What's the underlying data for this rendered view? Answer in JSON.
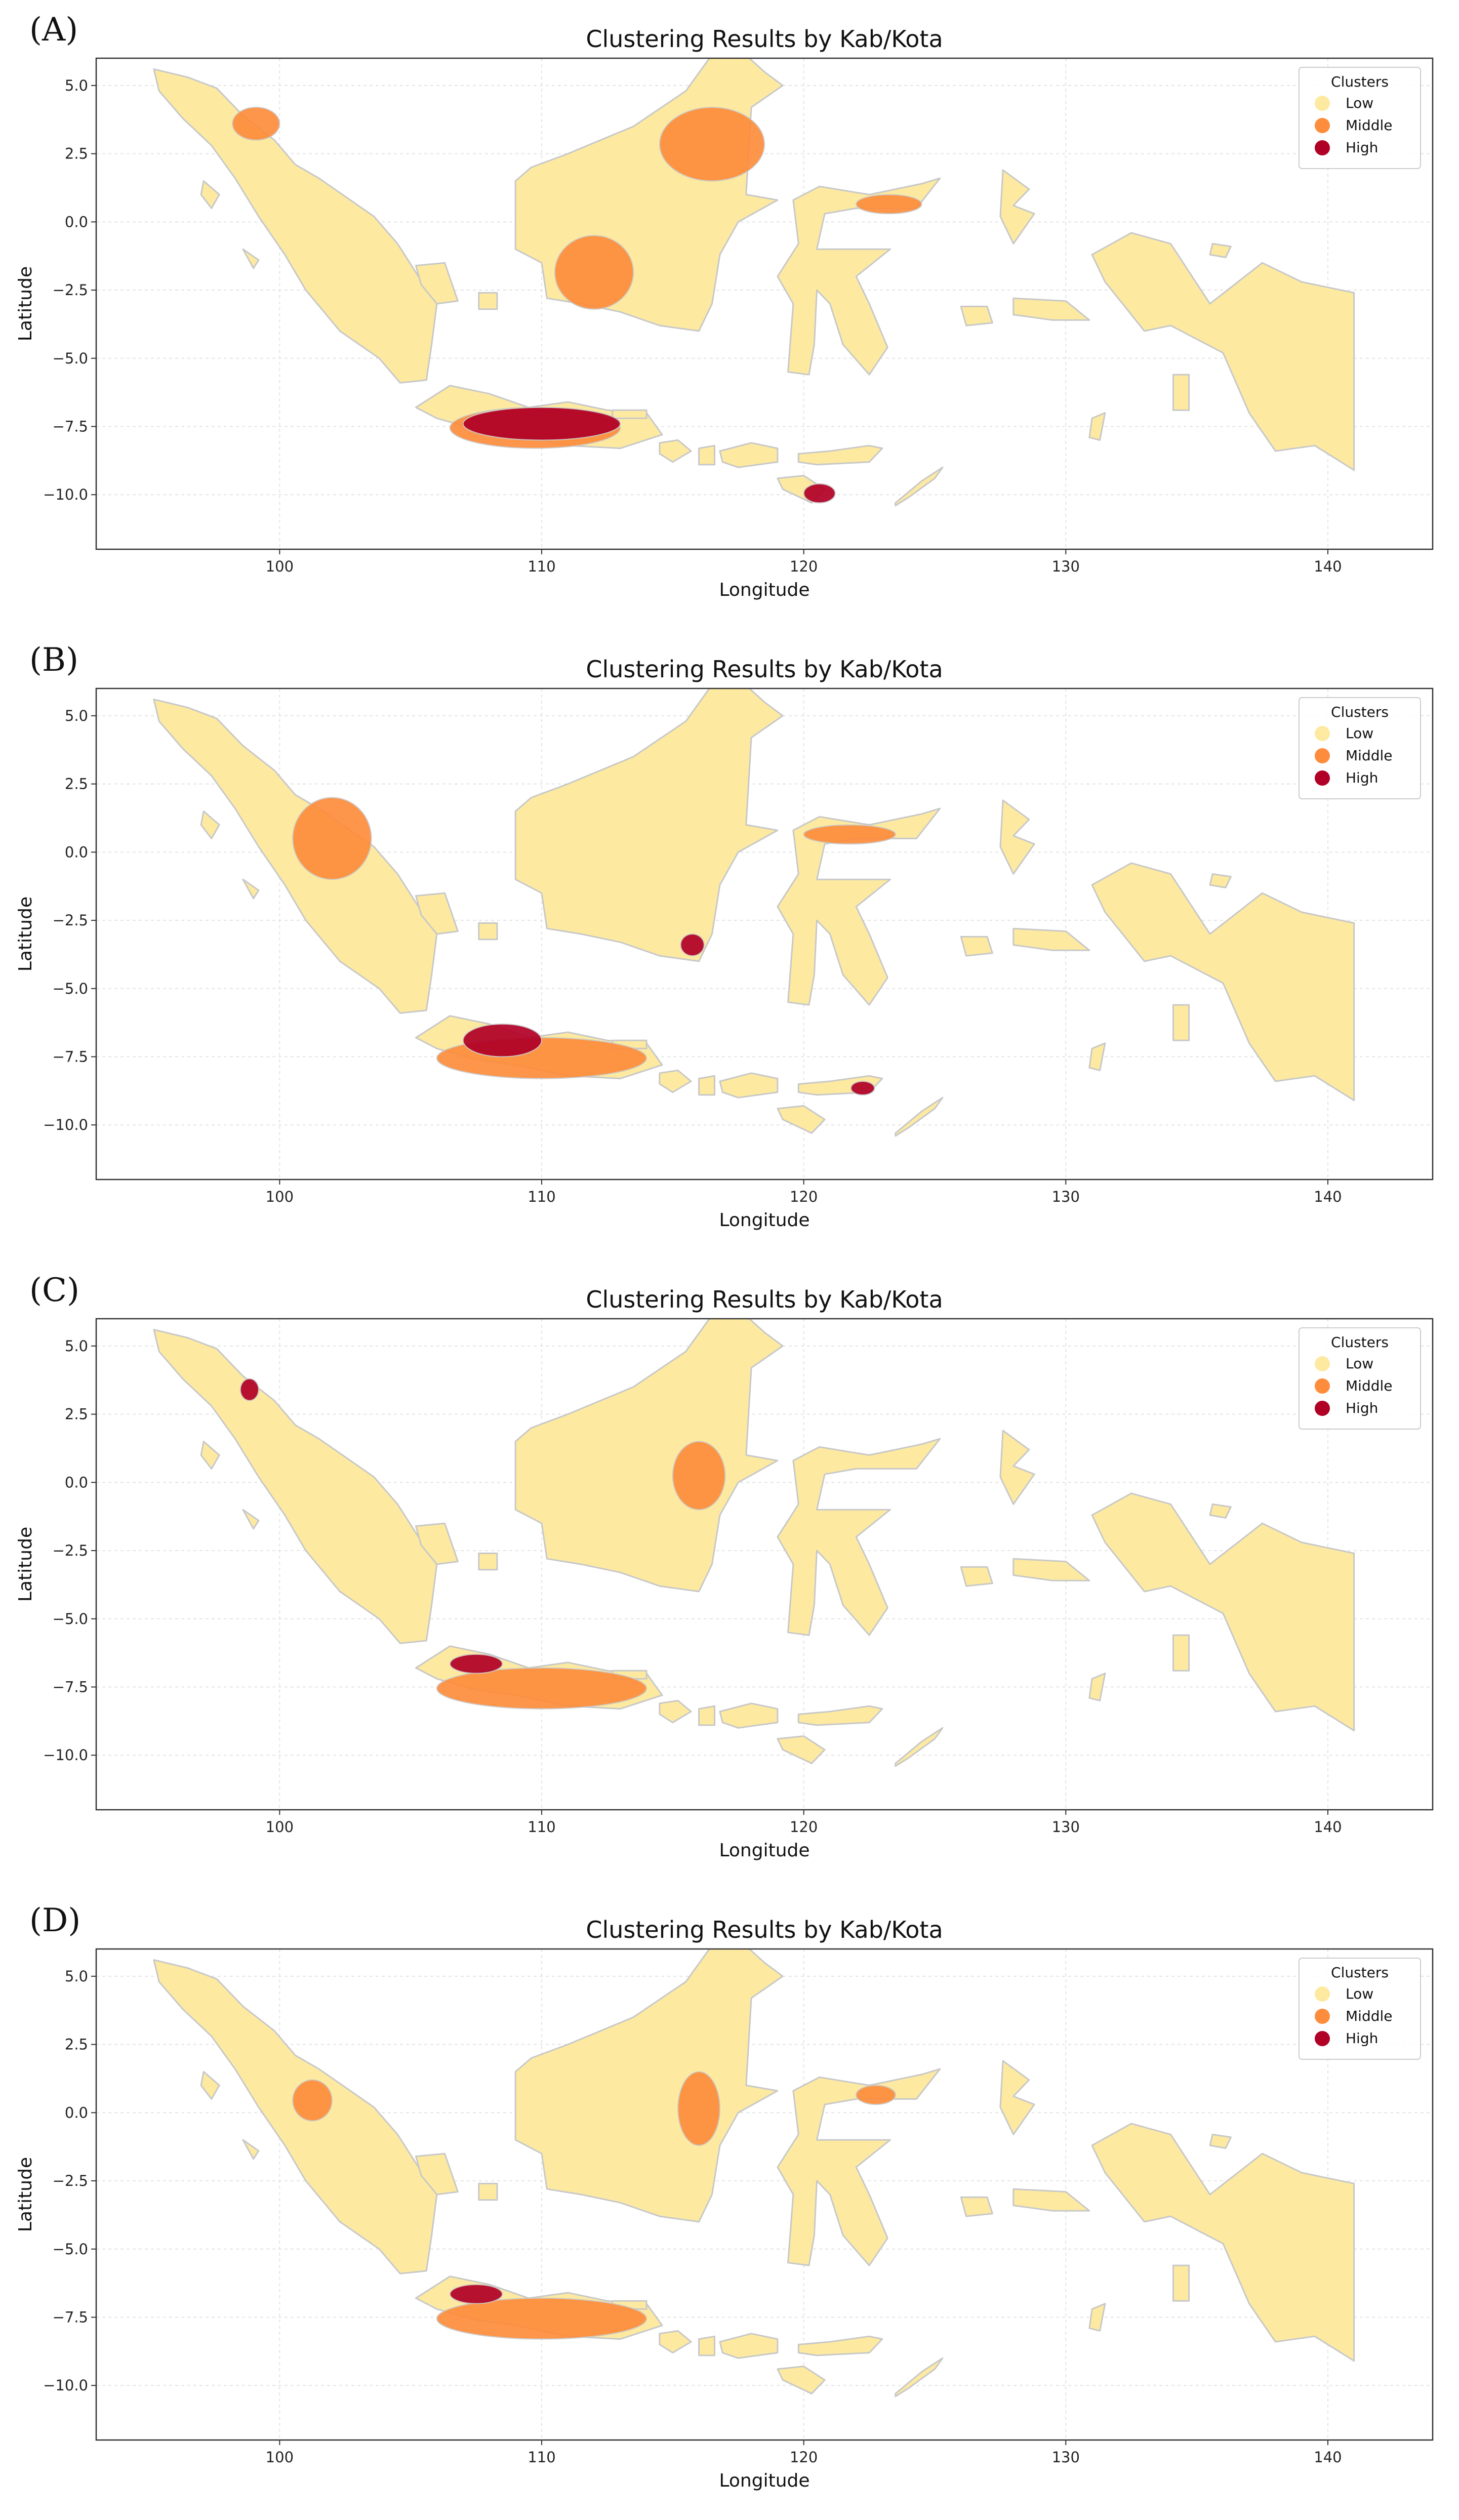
{
  "panels": [
    {
      "label": "(A)",
      "chart_data": {
        "type": "map",
        "title": "Clustering Results by Kab/Kota",
        "xlabel": "Longitude",
        "ylabel": "Latitude",
        "xlim": [
          93,
          144
        ],
        "ylim": [
          -12,
          6
        ],
        "xticks": [
          "100",
          "110",
          "120",
          "130",
          "140"
        ],
        "yticks": [
          "5.0",
          "2.5",
          "0.0",
          "−2.5",
          "−5.0",
          "−7.5",
          "−10.0"
        ],
        "grid": true,
        "legend": {
          "title": "Clusters",
          "position": "top-right",
          "entries": [
            {
              "label": "Low",
              "color": "#fdeaa0"
            },
            {
              "label": "Middle",
              "color": "#fd8d3c"
            },
            {
              "label": "High",
              "color": "#b10026"
            }
          ]
        },
        "highlights": [
          {
            "cluster": "Middle",
            "lon": [
              114.5,
              118.5
            ],
            "lat": [
              1.5,
              4.2
            ]
          },
          {
            "cluster": "Middle",
            "lon": [
              110.5,
              113.5
            ],
            "lat": [
              -3.2,
              -0.5
            ]
          },
          {
            "cluster": "Middle",
            "lon": [
              98.2,
              100.0
            ],
            "lat": [
              3.0,
              4.2
            ]
          },
          {
            "cluster": "Middle",
            "lon": [
              106.5,
              113.0
            ],
            "lat": [
              -8.3,
              -6.8
            ]
          },
          {
            "cluster": "High",
            "lon": [
              107.0,
              113.0
            ],
            "lat": [
              -8.0,
              -6.8
            ]
          },
          {
            "cluster": "High",
            "lon": [
              120.0,
              121.2
            ],
            "lat": [
              -10.3,
              -9.6
            ]
          },
          {
            "cluster": "Middle",
            "lon": [
              122.0,
              124.5
            ],
            "lat": [
              0.3,
              1.0
            ]
          }
        ]
      }
    },
    {
      "label": "(B)",
      "chart_data": {
        "type": "map",
        "title": "Clustering Results by Kab/Kota",
        "xlabel": "Longitude",
        "ylabel": "Latitude",
        "xlim": [
          93,
          144
        ],
        "ylim": [
          -12,
          6
        ],
        "xticks": [
          "100",
          "110",
          "120",
          "130",
          "140"
        ],
        "yticks": [
          "5.0",
          "2.5",
          "0.0",
          "−2.5",
          "−5.0",
          "−7.5",
          "−10.0"
        ],
        "grid": true,
        "legend": {
          "title": "Clusters",
          "position": "top-right",
          "entries": [
            {
              "label": "Low",
              "color": "#fdeaa0"
            },
            {
              "label": "Middle",
              "color": "#fd8d3c"
            },
            {
              "label": "High",
              "color": "#b10026"
            }
          ]
        },
        "highlights": [
          {
            "cluster": "Middle",
            "lon": [
              100.5,
              103.5
            ],
            "lat": [
              -1.0,
              2.0
            ]
          },
          {
            "cluster": "Middle",
            "lon": [
              106.0,
              114.0
            ],
            "lat": [
              -8.3,
              -6.8
            ]
          },
          {
            "cluster": "High",
            "lon": [
              107.0,
              110.0
            ],
            "lat": [
              -7.5,
              -6.3
            ]
          },
          {
            "cluster": "High",
            "lon": [
              115.3,
              116.2
            ],
            "lat": [
              -3.8,
              -3.0
            ]
          },
          {
            "cluster": "Middle",
            "lon": [
              120.0,
              123.5
            ],
            "lat": [
              0.3,
              1.0
            ]
          },
          {
            "cluster": "High",
            "lon": [
              121.8,
              122.7
            ],
            "lat": [
              -8.9,
              -8.4
            ]
          }
        ]
      }
    },
    {
      "label": "(C)",
      "chart_data": {
        "type": "map",
        "title": "Clustering Results by Kab/Kota",
        "xlabel": "Longitude",
        "ylabel": "Latitude",
        "xlim": [
          93,
          144
        ],
        "ylim": [
          -12,
          6
        ],
        "xticks": [
          "100",
          "110",
          "120",
          "130",
          "140"
        ],
        "yticks": [
          "5.0",
          "2.5",
          "0.0",
          "−2.5",
          "−5.0",
          "−7.5",
          "−10.0"
        ],
        "grid": true,
        "legend": {
          "title": "Clusters",
          "position": "top-right",
          "entries": [
            {
              "label": "Low",
              "color": "#fdeaa0"
            },
            {
              "label": "Middle",
              "color": "#fd8d3c"
            },
            {
              "label": "High",
              "color": "#b10026"
            }
          ]
        },
        "highlights": [
          {
            "cluster": "High",
            "lon": [
              98.5,
              99.2
            ],
            "lat": [
              3.0,
              3.8
            ]
          },
          {
            "cluster": "Middle",
            "lon": [
              115.0,
              117.0
            ],
            "lat": [
              -1.0,
              1.5
            ]
          },
          {
            "cluster": "Middle",
            "lon": [
              106.0,
              114.0
            ],
            "lat": [
              -8.3,
              -6.8
            ]
          },
          {
            "cluster": "High",
            "lon": [
              106.5,
              108.5
            ],
            "lat": [
              -7.0,
              -6.3
            ]
          }
        ]
      }
    },
    {
      "label": "(D)",
      "chart_data": {
        "type": "map",
        "title": "Clustering Results by Kab/Kota",
        "xlabel": "Longitude",
        "ylabel": "Latitude",
        "xlim": [
          93,
          144
        ],
        "ylim": [
          -12,
          6
        ],
        "xticks": [
          "100",
          "110",
          "120",
          "130",
          "140"
        ],
        "yticks": [
          "5.0",
          "2.5",
          "0.0",
          "−2.5",
          "−5.0",
          "−7.5",
          "−10.0"
        ],
        "grid": true,
        "legend": {
          "title": "Clusters",
          "position": "top-right",
          "entries": [
            {
              "label": "Low",
              "color": "#fdeaa0"
            },
            {
              "label": "Middle",
              "color": "#fd8d3c"
            },
            {
              "label": "High",
              "color": "#b10026"
            }
          ]
        },
        "highlights": [
          {
            "cluster": "Middle",
            "lon": [
              100.5,
              102.0
            ],
            "lat": [
              -0.3,
              1.2
            ]
          },
          {
            "cluster": "Middle",
            "lon": [
              115.2,
              116.8
            ],
            "lat": [
              -1.2,
              1.5
            ]
          },
          {
            "cluster": "Middle",
            "lon": [
              106.0,
              114.0
            ],
            "lat": [
              -8.3,
              -6.8
            ]
          },
          {
            "cluster": "High",
            "lon": [
              106.5,
              108.5
            ],
            "lat": [
              -7.0,
              -6.3
            ]
          },
          {
            "cluster": "Middle",
            "lon": [
              122.0,
              123.5
            ],
            "lat": [
              0.3,
              1.0
            ]
          }
        ]
      }
    }
  ]
}
